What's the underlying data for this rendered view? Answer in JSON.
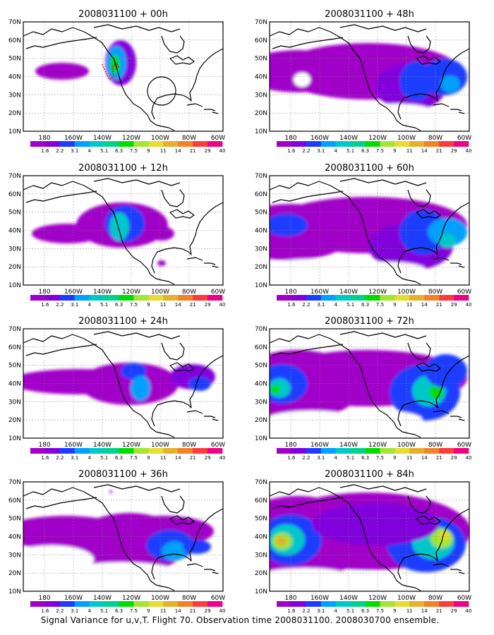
{
  "panels": [
    {
      "title": "2008031100 + 00h",
      "lead_hours": 0
    },
    {
      "title": "2008031100 + 48h",
      "lead_hours": 48
    },
    {
      "title": "2008031100 + 12h",
      "lead_hours": 12
    },
    {
      "title": "2008031100 + 60h",
      "lead_hours": 60
    },
    {
      "title": "2008031100 + 24h",
      "lead_hours": 24
    },
    {
      "title": "2008031100 + 72h",
      "lead_hours": 72
    },
    {
      "title": "2008031100 + 36h",
      "lead_hours": 36
    },
    {
      "title": "2008031100 + 84h",
      "lead_hours": 84
    }
  ],
  "lat_labels": [
    "70N",
    "60N",
    "50N",
    "40N",
    "30N",
    "20N",
    "10N"
  ],
  "lon_labels": [
    "180",
    "160W",
    "140W",
    "120W",
    "100W",
    "80W",
    "60W"
  ],
  "colorbar": {
    "labels": [
      "1.6",
      "2.2",
      "3.1",
      "4",
      "5.1",
      "6.3",
      "7.5",
      "9",
      "11",
      "14",
      "21",
      "29",
      "40"
    ],
    "colors": [
      "#a000c8",
      "#8200dc",
      "#1e3cff",
      "#00a0ff",
      "#00c8c8",
      "#00d28c",
      "#00dc00",
      "#a0e632",
      "#e6dc32",
      "#e6af2d",
      "#f08228",
      "#fa3c3c",
      "#f00082"
    ]
  },
  "caption": "Signal Variance for u,v,T. Flight 70. Observation time 2008031100. 2008030700 ensemble.",
  "chart_data": {
    "type": "heatmap",
    "variable": "Signal Variance for u,v,T",
    "region": {
      "lon_range": [
        "170E",
        "60W"
      ],
      "lat_range": [
        "10N",
        "70N"
      ]
    },
    "lead_times_h": [
      0,
      12,
      24,
      36,
      48,
      60,
      72,
      84
    ],
    "contour_levels": [
      1.6,
      2.2,
      3.1,
      4,
      5.1,
      6.3,
      7.5,
      9,
      11,
      14,
      21,
      29,
      40
    ],
    "grid": true
  }
}
